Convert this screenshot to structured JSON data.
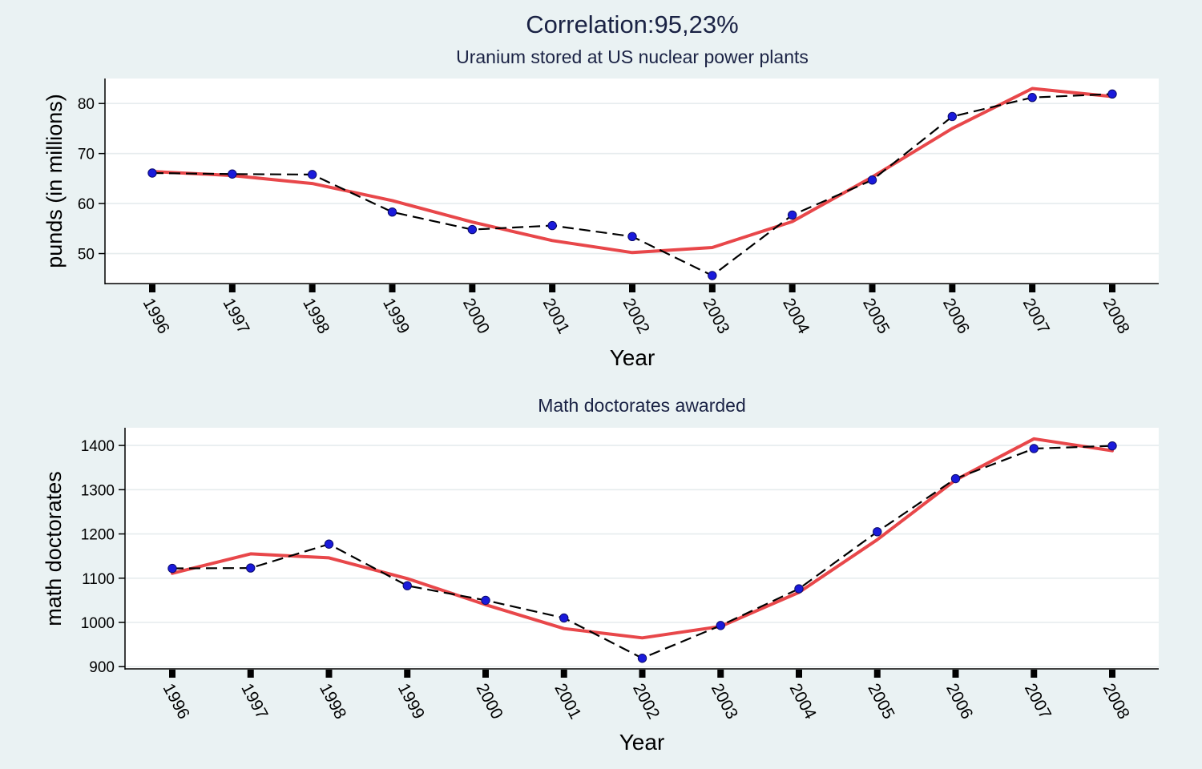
{
  "figure": {
    "title": "Correlation:95,23%"
  },
  "chart_data": [
    {
      "type": "line",
      "title": "Uranium stored at US nuclear power plants",
      "xlabel": "Year",
      "ylabel": "punds (in millions)",
      "x": [
        1996,
        1997,
        1998,
        1999,
        2000,
        2001,
        2002,
        2003,
        2004,
        2005,
        2006,
        2007,
        2008
      ],
      "yticks": [
        50,
        60,
        70,
        80
      ],
      "ylim": [
        44,
        85
      ],
      "grid": true,
      "series": [
        {
          "style": "dashed-with-markers",
          "color": "#000000",
          "marker_color": "#1a1adb",
          "values": [
            66.1,
            65.9,
            65.8,
            58.3,
            54.8,
            55.6,
            53.4,
            45.6,
            57.7,
            64.7,
            77.4,
            81.2,
            81.9
          ]
        },
        {
          "style": "solid-smooth",
          "color": "#e8474a",
          "values": [
            66.4,
            65.6,
            64.0,
            60.6,
            56.3,
            52.6,
            50.2,
            51.2,
            56.4,
            65.3,
            75.0,
            83.0,
            81.4
          ]
        }
      ]
    },
    {
      "type": "line",
      "title": "Math doctorates awarded",
      "xlabel": "Year",
      "ylabel": "math doctorates",
      "x": [
        1996,
        1997,
        1998,
        1999,
        2000,
        2001,
        2002,
        2003,
        2004,
        2005,
        2006,
        2007,
        2008
      ],
      "yticks": [
        900,
        1000,
        1100,
        1200,
        1300,
        1400
      ],
      "ylim": [
        895,
        1440
      ],
      "grid": true,
      "series": [
        {
          "style": "dashed-with-markers",
          "color": "#000000",
          "marker_color": "#1a1adb",
          "values": [
            1122,
            1123,
            1177,
            1083,
            1050,
            1010,
            919,
            993,
            1076,
            1205,
            1325,
            1393,
            1399
          ]
        },
        {
          "style": "solid-smooth",
          "color": "#e8474a",
          "values": [
            1111,
            1155,
            1146,
            1099,
            1040,
            986,
            965,
            991,
            1068,
            1187,
            1322,
            1415,
            1388
          ]
        }
      ]
    }
  ]
}
